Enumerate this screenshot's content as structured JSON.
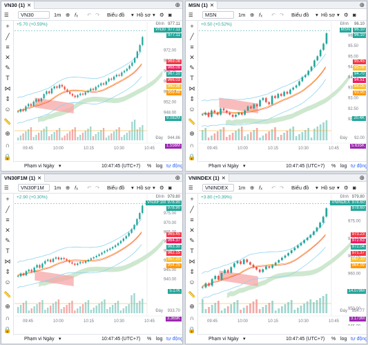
{
  "panels": [
    {
      "tab": "VN30 (1)",
      "symbol": "VN30",
      "change": "+5.70 (+0.59%)",
      "top_label": "Đỉnh",
      "top_value": "977.11",
      "sym_tag": "VN30",
      "last_price": "977.11",
      "price_axis": [
        "972.00",
        "968.00",
        "964.00",
        "960.00",
        "956.00",
        "952.00",
        "948.00"
      ],
      "price_tags": [
        {
          "v": "969.08",
          "color": "#f23645"
        },
        {
          "v": "968.09",
          "color": "#e91e63"
        },
        {
          "v": "967.10",
          "color": "#26a69a"
        },
        {
          "v": "966.03",
          "color": "#f23645"
        },
        {
          "v": "960.98",
          "color": "#fbc02d"
        },
        {
          "v": "959.48",
          "color": "#ff9800"
        }
      ],
      "vol_tag": {
        "v": "9.082M",
        "color": "#26a69a"
      },
      "bottom_label": "Đáy",
      "bottom_value": "944.86",
      "sub_tag": {
        "v": "1.556M",
        "color": "#9c27b0"
      },
      "x_labels": [
        "09:45",
        "10:00",
        "10:15",
        "10:30",
        "10:45"
      ],
      "chart_data": {
        "type": "candlestick",
        "close": [
          948.2,
          949.1,
          948.5,
          950.3,
          951.2,
          950.4,
          952.1,
          953.0,
          952.2,
          953.4,
          955.0,
          956.1,
          955.3,
          957.2,
          958.0,
          957.4,
          958.6,
          957.9,
          956.8,
          955.9,
          955.1,
          954.4,
          953.8,
          954.6,
          955.2,
          954.8,
          955.7,
          956.3,
          957.1,
          956.6,
          957.8,
          958.4,
          959.2,
          958.7,
          959.9,
          961.0,
          960.6,
          961.8,
          962.5,
          962.1,
          963.4,
          964.0,
          964.8,
          966.0,
          967.2,
          969.0,
          971.5,
          974.0,
          977.11
        ],
        "ylim": [
          943,
          981
        ]
      }
    },
    {
      "tab": "MSN (1)",
      "symbol": "MSN",
      "change": "+0.50 (+0.52%)",
      "top_label": "Đỉnh",
      "top_value": "96.10",
      "sym_tag": "MSN",
      "last_price": "96.10",
      "price_axis": [
        "96.00",
        "95.50",
        "95.00",
        "94.50",
        "94.00",
        "93.50",
        "93.00",
        "92.50",
        "92.00"
      ],
      "price_tags": [
        {
          "v": "95.45",
          "color": "#f23645"
        },
        {
          "v": "95.08",
          "color": "#fbc02d"
        },
        {
          "v": "94.70",
          "color": "#26a69a"
        },
        {
          "v": "94.51",
          "color": "#e91e63"
        },
        {
          "v": "94.05",
          "color": "#fbc02d"
        },
        {
          "v": "93.95",
          "color": "#ff9800"
        }
      ],
      "vol_tag": {
        "v": "20.4K",
        "color": "#26a69a"
      },
      "bottom_label": "Đáy",
      "bottom_value": "92.00",
      "sub_tag": {
        "v": "5.635K",
        "color": "#9c27b0"
      },
      "x_labels": [
        "09:45",
        "10:00",
        "10:15",
        "10:30",
        "10:45"
      ],
      "chart_data": {
        "type": "candlestick",
        "close": [
          92.2,
          92.3,
          92.1,
          92.4,
          92.3,
          92.2,
          92.5,
          92.4,
          92.3,
          92.2,
          92.1,
          92.2,
          92.3,
          92.2,
          92.4,
          92.6,
          92.5,
          92.7,
          92.6,
          92.9,
          93.0,
          92.8,
          92.7,
          93.1,
          93.0,
          93.2,
          93.1,
          93.3,
          93.2,
          93.4,
          93.5,
          93.6,
          93.8,
          94.0,
          94.1,
          94.3,
          94.5,
          94.8,
          95.0,
          95.3,
          95.6,
          96.1
        ],
        "ylim": [
          91.7,
          96.4
        ]
      }
    },
    {
      "tab": "VN30F1M (1)",
      "symbol": "VN30F1M",
      "change": "+2.90 (+0.30%)",
      "top_label": "Đỉnh",
      "top_value": "979.80",
      "sym_tag": "VN30F1M",
      "last_price": "978.90",
      "price_axis": [
        "975.00",
        "970.00",
        "965.00",
        "960.00",
        "955.00",
        "950.00",
        "945.00",
        "940.00"
      ],
      "price_tags": [
        {
          "v": "965.45",
          "color": "#f23645"
        },
        {
          "v": "964.37",
          "color": "#e91e63"
        },
        {
          "v": "963.30",
          "color": "#26a69a"
        },
        {
          "v": "962.15",
          "color": "#f23645"
        },
        {
          "v": "957.20",
          "color": "#fbc02d"
        },
        {
          "v": "954.25",
          "color": "#ff9800"
        }
      ],
      "vol_tag": {
        "v": "5.17K",
        "color": "#26a69a"
      },
      "bottom_label": "Đáy",
      "bottom_value": "933.70",
      "sub_tag": {
        "v": "3.369K",
        "color": "#9c27b0"
      },
      "x_labels": [
        "09:45",
        "10:00",
        "10:15",
        "10:30",
        "10:45"
      ],
      "chart_data": {
        "type": "candlestick",
        "close": [
          941.5,
          943.0,
          942.0,
          944.2,
          945.0,
          943.8,
          946.1,
          947.5,
          946.0,
          948.2,
          949.6,
          950.3,
          949.1,
          950.8,
          951.5,
          950.4,
          951.2,
          950.6,
          949.8,
          948.9,
          948.2,
          947.5,
          948.3,
          949.0,
          948.6,
          949.4,
          950.2,
          951.0,
          951.6,
          952.3,
          953.1,
          954.0,
          954.8,
          955.5,
          956.2,
          957.0,
          957.9,
          959.0,
          960.2,
          961.5,
          962.8,
          964.5,
          966.4,
          968.7,
          971.8,
          975.0,
          978.9
        ],
        "ylim": [
          930,
          982
        ]
      }
    },
    {
      "tab": "VNINDEX (1)",
      "symbol": "VNINDEX",
      "change": "+3.80 (+0.39%)",
      "top_label": "Đỉnh",
      "top_value": "979.80",
      "sym_tag": "VNINDEX",
      "last_price": "978.60",
      "price_axis": [
        "975.00",
        "970.00",
        "965.00",
        "960.00",
        "955.00",
        "950.00",
        "945.00"
      ],
      "price_tags": [
        {
          "v": "973.23",
          "color": "#f23645"
        },
        {
          "v": "972.63",
          "color": "#e91e63"
        },
        {
          "v": "972.04",
          "color": "#26a69a"
        },
        {
          "v": "971.37",
          "color": "#f23645"
        },
        {
          "v": "967.10",
          "color": "#fbc02d"
        },
        {
          "v": "964.99",
          "color": "#ff9800"
        }
      ],
      "vol_tag": {
        "v": "14.079M",
        "color": "#26a69a"
      },
      "bottom_label": "Đáy",
      "bottom_value": "954.77",
      "sub_tag": {
        "v": "3.173M",
        "color": "#9c27b0"
      },
      "x_labels": [
        "09:45",
        "10:00",
        "10:15",
        "10:30",
        "10:45"
      ],
      "chart_data": {
        "type": "candlestick",
        "close": [
          956.0,
          957.2,
          956.5,
          958.4,
          959.3,
          958.2,
          960.1,
          961.0,
          960.2,
          961.8,
          962.9,
          963.5,
          962.7,
          964.0,
          963.2,
          962.5,
          961.8,
          961.1,
          960.4,
          961.2,
          962.0,
          961.6,
          962.4,
          963.1,
          963.8,
          964.5,
          965.1,
          965.8,
          966.6,
          967.3,
          968.0,
          968.7,
          969.5,
          970.2,
          971.0,
          972.0,
          973.1,
          974.5,
          976.2,
          978.6
        ],
        "ylim": [
          953,
          981
        ]
      }
    }
  ],
  "toolbar": {
    "interval": "1m",
    "chart_label": "Biểu đồ",
    "profile_label": "Hồ sơ"
  },
  "footer": {
    "range_label": "Phạm vi Ngày",
    "time": "10:47:45 (UTC+7)",
    "pct": "%",
    "log": "log",
    "auto": "tự động"
  },
  "colors": {
    "up": "#26a69a",
    "down": "#ef5350",
    "cloud": "#a5d6a7",
    "cloud_red": "#f7a6a6"
  }
}
